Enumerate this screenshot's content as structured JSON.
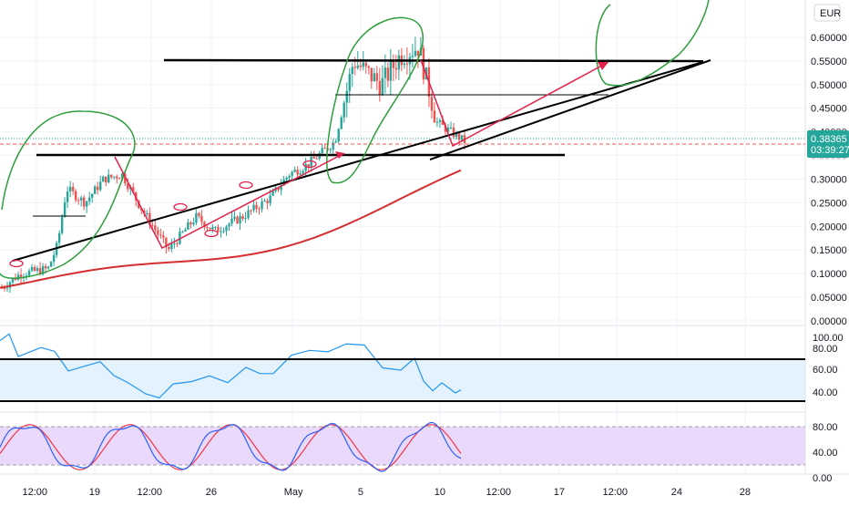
{
  "chart": {
    "currency": "EUR",
    "last_price": "0.38365",
    "countdown": "03:39:27"
  },
  "price_axis": {
    "ticks": [
      "0.60000",
      "0.55000",
      "0.50000",
      "0.45000",
      "0.40000",
      "0.35000",
      "0.30000",
      "0.25000",
      "0.20000",
      "0.15000",
      "0.10000",
      "0.05000",
      "0.00000"
    ]
  },
  "rsi_axis": {
    "ticks": [
      "100.00",
      "80.00",
      "60.00",
      "40.00"
    ]
  },
  "stoch_axis": {
    "ticks": [
      "80.00",
      "40.00",
      "0.00"
    ]
  },
  "time_axis": {
    "labels": [
      "12:00",
      "19",
      "12:00",
      "26",
      "May",
      "5",
      "10",
      "12:00",
      "17",
      "12:00",
      "24",
      "28"
    ]
  },
  "colors": {
    "bull": "#26a69a",
    "bear": "#ef5350",
    "ma": "#d32f2f",
    "rsi_line": "#2196f3",
    "rsi_band": "#e3f2fd",
    "stoch_band": "#ead9fb",
    "stoch_k": "#2962ff",
    "stoch_d": "#f23645",
    "drawing_green": "#2e9e3c",
    "drawing_red": "#e0224a",
    "label_bg": "#26a69a"
  },
  "chart_data": {
    "type": "candlestick",
    "currency": "EUR",
    "ylim": [
      0,
      0.62
    ],
    "last_price": 0.38365,
    "resistance_levels": [
      0.355,
      0.55,
      0.475
    ],
    "close_path": [
      [
        0,
        0.07
      ],
      [
        0.02,
        0.1
      ],
      [
        0.05,
        0.11
      ],
      [
        0.06,
        0.16
      ],
      [
        0.07,
        0.28
      ],
      [
        0.09,
        0.25
      ],
      [
        0.11,
        0.3
      ],
      [
        0.13,
        0.31
      ],
      [
        0.15,
        0.24
      ],
      [
        0.18,
        0.15
      ],
      [
        0.21,
        0.22
      ],
      [
        0.23,
        0.19
      ],
      [
        0.26,
        0.22
      ],
      [
        0.29,
        0.26
      ],
      [
        0.31,
        0.31
      ],
      [
        0.33,
        0.33
      ],
      [
        0.36,
        0.38
      ],
      [
        0.38,
        0.55
      ],
      [
        0.41,
        0.5
      ],
      [
        0.43,
        0.56
      ],
      [
        0.45,
        0.58
      ],
      [
        0.47,
        0.42
      ],
      [
        0.5,
        0.38
      ]
    ]
  }
}
